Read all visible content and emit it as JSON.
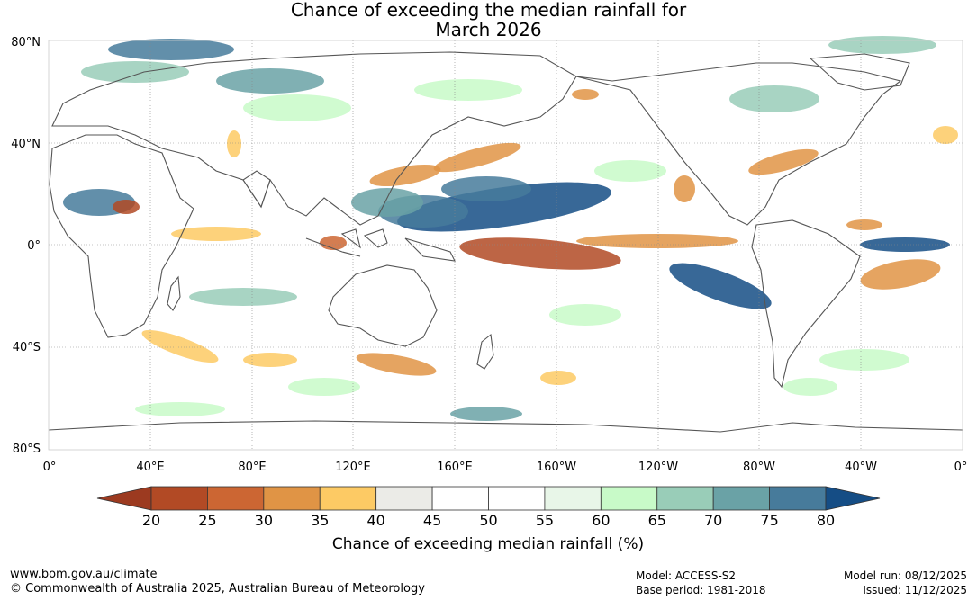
{
  "title": {
    "line1": "Chance of exceeding the median rainfall for",
    "line2": "March 2026"
  },
  "map": {
    "lat_labels": [
      "80°N",
      "40°N",
      "0°",
      "40°S",
      "80°S"
    ],
    "lon_labels": [
      "0°",
      "40°E",
      "80°E",
      "120°E",
      "160°E",
      "160°W",
      "120°W",
      "80°W",
      "40°W",
      "0°"
    ]
  },
  "legend": {
    "title": "Chance of exceeding median rainfall (%)",
    "ticks": [
      "20",
      "25",
      "30",
      "35",
      "40",
      "45",
      "50",
      "55",
      "60",
      "65",
      "70",
      "75",
      "80"
    ],
    "colors": [
      "#9c3a20",
      "#b24a25",
      "#cc6633",
      "#e09445",
      "#fdca64",
      "#ebebe7",
      "#ffffff",
      "#ffffff",
      "#e8f6e8",
      "#c8fac8",
      "#99cdb8",
      "#6aa2a6",
      "#477b9b",
      "#154d85"
    ]
  },
  "footer": {
    "url": "www.bom.gov.au/climate",
    "copyright": "© Commonwealth of Australia 2025, Australian Bureau of Meteorology",
    "model": "Model: ACCESS-S2",
    "base_period": "Base period: 1981-2018",
    "model_run": "Model run: 08/12/2025",
    "issued": "Issued: 11/12/2025"
  }
}
